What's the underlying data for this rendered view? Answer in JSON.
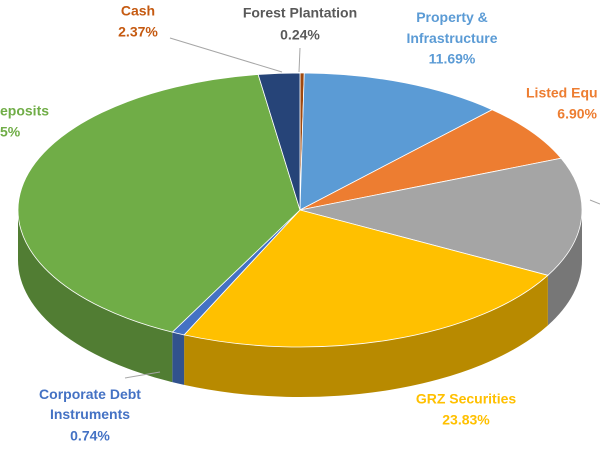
{
  "chart_data": {
    "type": "pie3d",
    "categories": [
      "Forest Plantation",
      "Property & Infrastructure",
      "Listed Equ",
      null,
      "GRZ Securities",
      "Corporate Debt Instruments",
      null,
      "Cash"
    ],
    "values": [
      0.24,
      11.69,
      6.9,
      14.08,
      23.83,
      0.74,
      40.15,
      2.37
    ],
    "value_labels": [
      "0.24%",
      "11.69%",
      "6.90%",
      null,
      "23.83%",
      "0.74%",
      null,
      "2.37%"
    ],
    "colors": [
      "#9e480e",
      "#5b9bd5",
      "#ed7d31",
      "#a5a5a5",
      "#ffc000",
      "#4472c4",
      "#70ad47",
      "#264478"
    ],
    "label_colors": [
      "#595959",
      "#5b9bd5",
      "#ed7d31",
      "#a5a5a5",
      "#ffc000",
      "#4472c4",
      "#70ad47",
      "#c55a11"
    ],
    "annotations": [
      "eposits",
      "5%"
    ]
  }
}
